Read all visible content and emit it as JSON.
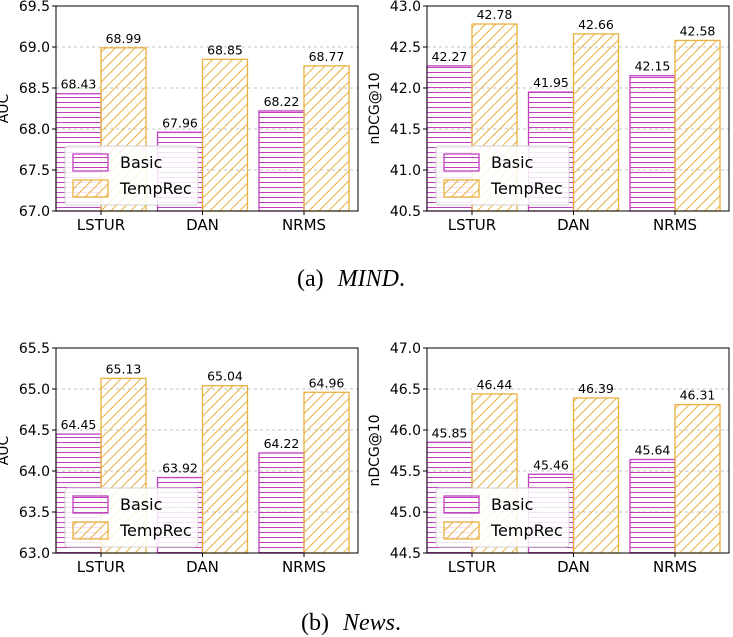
{
  "colors": {
    "basic": "#c040c0",
    "temprec": "#e8b040",
    "grid": "#b0b0b0",
    "axis": "#000000"
  },
  "legend": {
    "basic": "Basic",
    "temprec": "TempRec"
  },
  "captions": [
    {
      "tag": "(a)",
      "name": "MIND",
      "end": "."
    },
    {
      "tag": "(b)",
      "name": "News",
      "end": "."
    }
  ],
  "chart_data": [
    {
      "type": "bar",
      "row": 0,
      "col": 0,
      "categories": [
        "LSTUR",
        "DAN",
        "NRMS"
      ],
      "series": [
        {
          "name": "Basic",
          "values": [
            68.43,
            67.96,
            68.22
          ]
        },
        {
          "name": "TempRec",
          "values": [
            68.99,
            68.85,
            68.77
          ]
        }
      ],
      "ylabel": "AUC",
      "ylim": [
        67.0,
        69.5
      ],
      "yticks": [
        "67.0",
        "67.5",
        "68.0",
        "68.5",
        "69.0",
        "69.5"
      ],
      "labels": [
        [
          "68.43",
          "67.96",
          "68.22"
        ],
        [
          "68.99",
          "68.85",
          "68.77"
        ]
      ],
      "legend_position": "lower-left",
      "grid": "y-dashed"
    },
    {
      "type": "bar",
      "row": 0,
      "col": 1,
      "categories": [
        "LSTUR",
        "DAN",
        "NRMS"
      ],
      "series": [
        {
          "name": "Basic",
          "values": [
            42.27,
            41.95,
            42.15
          ]
        },
        {
          "name": "TempRec",
          "values": [
            42.78,
            42.66,
            42.58
          ]
        }
      ],
      "ylabel": "nDCG@10",
      "ylim": [
        40.5,
        43.0
      ],
      "yticks": [
        "40.5",
        "41.0",
        "41.5",
        "42.0",
        "42.5",
        "43.0"
      ],
      "labels": [
        [
          "42.27",
          "41.95",
          "42.15"
        ],
        [
          "42.78",
          "42.66",
          "42.58"
        ]
      ],
      "legend_position": "lower-left",
      "grid": "y-dashed"
    },
    {
      "type": "bar",
      "row": 1,
      "col": 0,
      "categories": [
        "LSTUR",
        "DAN",
        "NRMS"
      ],
      "series": [
        {
          "name": "Basic",
          "values": [
            64.45,
            63.92,
            64.22
          ]
        },
        {
          "name": "TempRec",
          "values": [
            65.13,
            65.04,
            64.96
          ]
        }
      ],
      "ylabel": "AUC",
      "ylim": [
        63.0,
        65.5
      ],
      "yticks": [
        "63.0",
        "63.5",
        "64.0",
        "64.5",
        "65.0",
        "65.5"
      ],
      "labels": [
        [
          "64.45",
          "63.92",
          "64.22"
        ],
        [
          "65.13",
          "65.04",
          "64.96"
        ]
      ],
      "legend_position": "lower-left",
      "grid": "y-dashed"
    },
    {
      "type": "bar",
      "row": 1,
      "col": 1,
      "categories": [
        "LSTUR",
        "DAN",
        "NRMS"
      ],
      "series": [
        {
          "name": "Basic",
          "values": [
            45.85,
            45.46,
            45.64
          ]
        },
        {
          "name": "TempRec",
          "values": [
            46.44,
            46.39,
            46.31
          ]
        }
      ],
      "ylabel": "nDCG@10",
      "ylim": [
        44.5,
        47.0
      ],
      "yticks": [
        "44.5",
        "45.0",
        "45.5",
        "46.0",
        "46.5",
        "47.0"
      ],
      "labels": [
        [
          "45.85",
          "45.46",
          "45.64"
        ],
        [
          "46.44",
          "46.39",
          "46.31"
        ]
      ],
      "legend_position": "lower-left",
      "grid": "y-dashed"
    }
  ]
}
